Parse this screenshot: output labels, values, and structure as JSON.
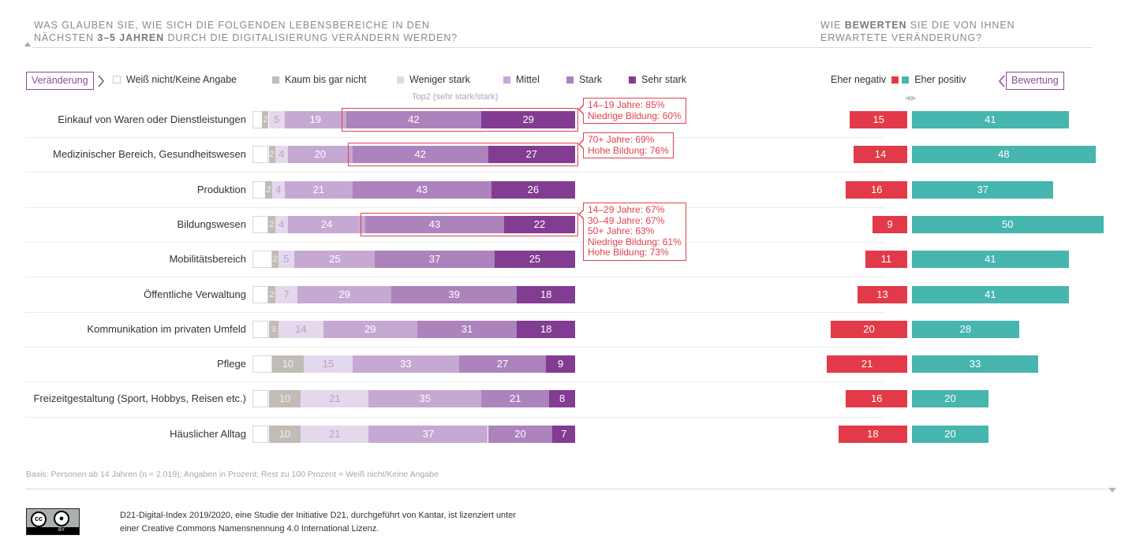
{
  "left_title": {
    "line1": "WAS GLAUBEN SIE, WIE SICH DIE FOLGENDEN LEBENSBEREICHE IN DEN",
    "line2_pre": "NÄCHSTEN ",
    "line2_bold": "3–5 JAHREN",
    "line2_post": " DURCH DIE DIGITALISIERUNG  VERÄNDERN WERDEN?"
  },
  "right_title": {
    "line1_pre": "WIE ",
    "line1_bold": "BEWERTEN",
    "line1_post": " SIE DIE VON IHNEN",
    "line2": "ERWARTETE VERÄNDERUNG?"
  },
  "left_tag": "Veränderung",
  "right_tag": "Bewertung",
  "top2_label": "Top2 (sehr stark/stark)",
  "colors": {
    "unknown": "#ffffff",
    "kaum": "#c1bcb6",
    "weniger": "#e4d8ec",
    "mittel": "#c6a9d3",
    "stark": "#ac83bd",
    "sehr_stark": "#823c92",
    "negativ": "#e23a48",
    "positiv": "#46b6ae",
    "highlight": "#e0414d",
    "tag": "#8a4a95"
  },
  "chart_data": [
    {
      "type": "bar",
      "orientation": "horizontal",
      "stacked": true,
      "title": "Was glauben Sie, wie sich die folgenden Lebensbereiche in den nächsten 3–5 Jahren durch die Digitalisierung verändern werden?",
      "unit": "Prozent",
      "categories": [
        "Einkauf von Waren oder Dienstleistungen",
        "Medizinischer Bereich, Gesundheitswesen",
        "Produktion",
        "Bildungswesen",
        "Mobilitätsbereich",
        "Öffentliche Verwaltung",
        "Kommunikation im privaten Umfeld",
        "Pflege",
        "Freizeitgestaltung (Sport, Hobbys, Reisen etc.)",
        "Häuslicher Alltag"
      ],
      "legend": [
        "Weiß nicht/Keine Angabe",
        "Kaum bis gar nicht",
        "Weniger stark",
        "Mittel",
        "Stark",
        "Sehr stark"
      ],
      "legend_position": "top",
      "series": [
        {
          "name": "Kaum bis gar nicht",
          "key": "kaum",
          "values": [
            2,
            2,
            2,
            2,
            2,
            2,
            3,
            10,
            10,
            10
          ]
        },
        {
          "name": "Weniger stark",
          "key": "weniger",
          "values": [
            5,
            4,
            4,
            4,
            5,
            7,
            14,
            15,
            21,
            21
          ]
        },
        {
          "name": "Mittel",
          "key": "mittel",
          "values": [
            19,
            20,
            21,
            24,
            25,
            29,
            29,
            33,
            35,
            37
          ]
        },
        {
          "name": "Stark",
          "key": "stark",
          "values": [
            42,
            42,
            43,
            43,
            37,
            39,
            31,
            27,
            21,
            20
          ]
        },
        {
          "name": "Sehr stark",
          "key": "sehr_stark",
          "values": [
            29,
            27,
            26,
            22,
            25,
            18,
            18,
            9,
            8,
            7
          ]
        }
      ],
      "remainder_series": "Weiß nicht/Keine Angabe",
      "xlim": [
        0,
        100
      ],
      "highlighted_rows": [
        0,
        1,
        3
      ],
      "callouts": [
        {
          "row": 0,
          "lines": [
            "14–19 Jahre: 85%",
            "Niedrige Bildung: 60%"
          ]
        },
        {
          "row": 1,
          "lines": [
            "70+ Jahre: 69%",
            "Hohe Bildung: 76%"
          ]
        },
        {
          "row": 3,
          "lines": [
            "14–29 Jahre: 67%",
            "30–49 Jahre: 67%",
            "50+ Jahre: 63%",
            "Niedrige Bildung: 61%",
            "Hohe Bildung: 73%"
          ]
        }
      ]
    },
    {
      "type": "bar",
      "orientation": "horizontal",
      "diverging": true,
      "title": "Wie bewerten Sie die von Ihnen erwartete Veränderung?",
      "unit": "Prozent",
      "categories": [
        "Einkauf von Waren oder Dienstleistungen",
        "Medizinischer Bereich, Gesundheitswesen",
        "Produktion",
        "Bildungswesen",
        "Mobilitätsbereich",
        "Öffentliche Verwaltung",
        "Kommunikation im privaten Umfeld",
        "Pflege",
        "Freizeitgestaltung (Sport, Hobbys, Reisen etc.)",
        "Häuslicher Alltag"
      ],
      "legend": [
        "Eher negativ",
        "Eher positiv"
      ],
      "legend_position": "top-right",
      "series": [
        {
          "name": "Eher negativ",
          "key": "negativ",
          "values": [
            15,
            14,
            16,
            9,
            11,
            13,
            20,
            21,
            16,
            18
          ]
        },
        {
          "name": "Eher positiv",
          "key": "positiv",
          "values": [
            41,
            48,
            37,
            50,
            41,
            41,
            28,
            33,
            20,
            20
          ]
        }
      ]
    }
  ],
  "footnote": "Basis: Personen ab 14 Jahren (n = 2.019); Angaben in Prozent; Rest zu 100 Prozent = Weiß nicht/Keine Angabe",
  "license": {
    "line1": "D21-Digital-Index 2019/2020, eine Studie der Initiative D21, durchgeführt von Kantar, ist lizenziert unter",
    "line2": "einer Creative Commons Namensnennung 4.0 International Lizenz.",
    "badge_cc": "cc",
    "badge_by": "BY"
  }
}
